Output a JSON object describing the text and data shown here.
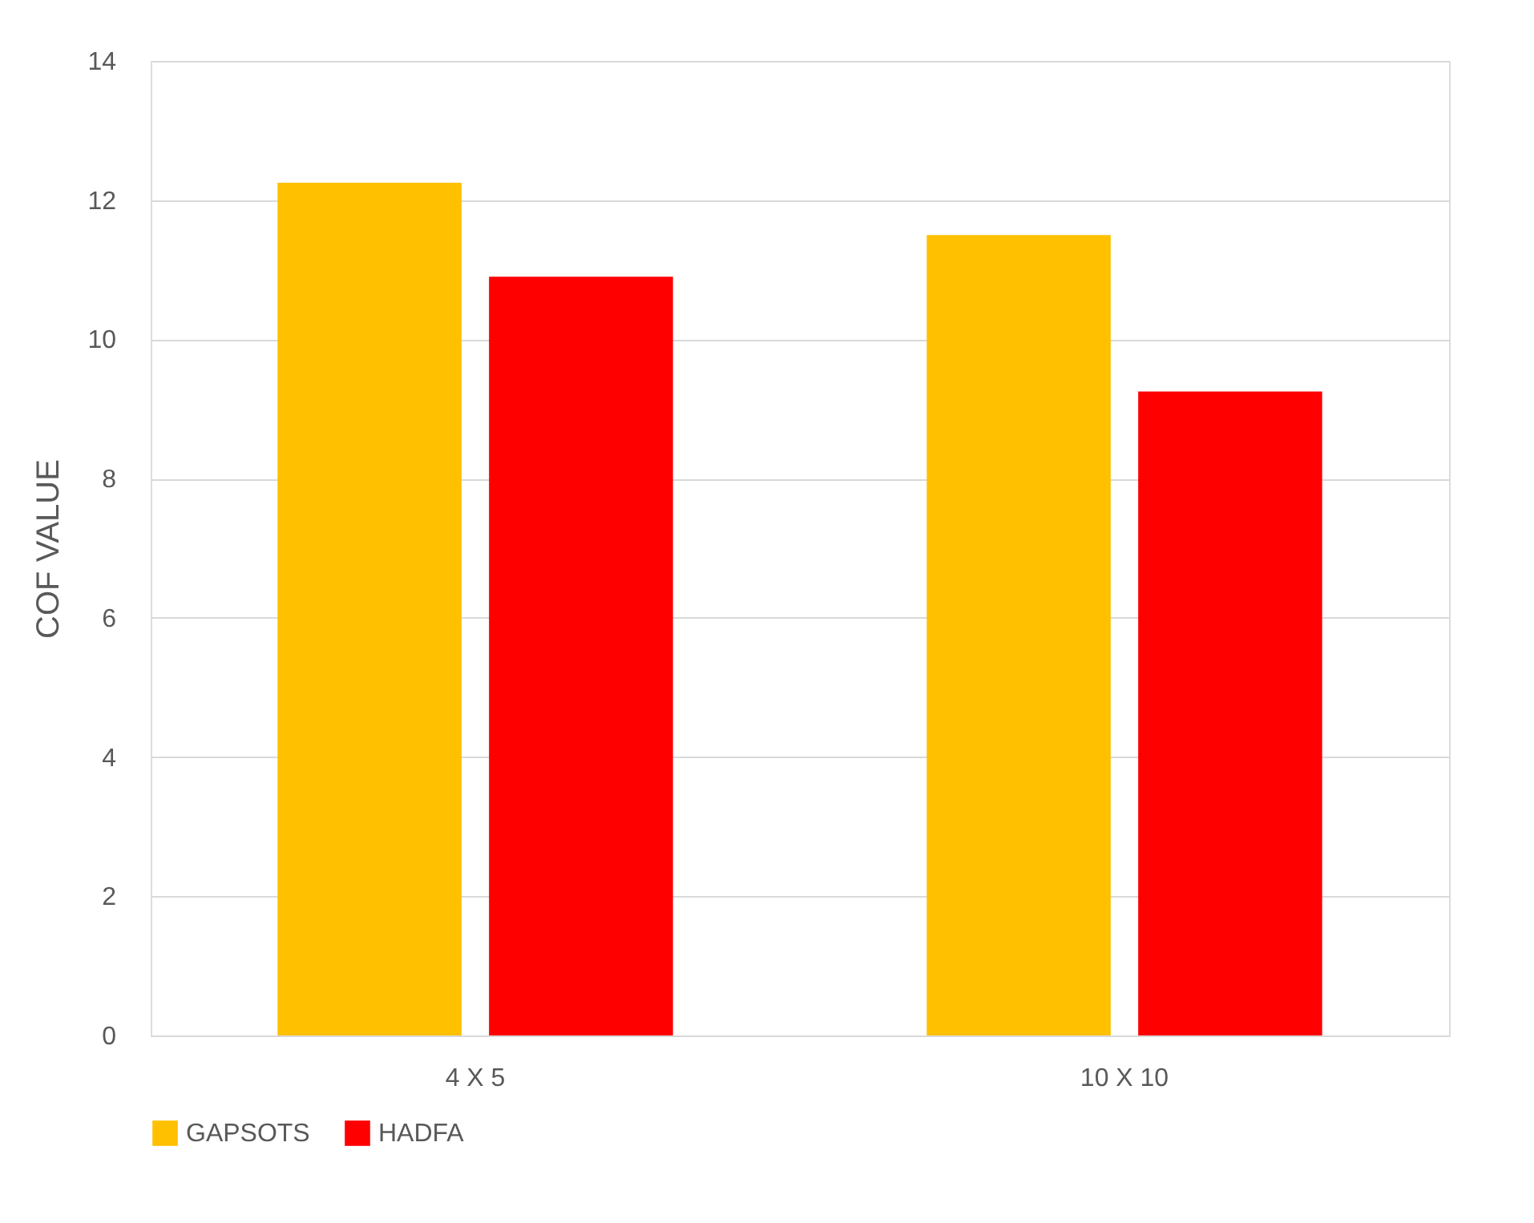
{
  "chart_data": {
    "type": "bar",
    "ylabel": "COF VALUE",
    "categories": [
      "4 X 5",
      "10 X 10"
    ],
    "series": [
      {
        "name": "GAPSOTS",
        "color": "#ffc000",
        "values": [
          12.25,
          11.5
        ]
      },
      {
        "name": "HADFA",
        "color": "#ff0000",
        "values": [
          10.9,
          9.25
        ]
      }
    ],
    "ylim": [
      0,
      14
    ],
    "yticks": [
      0,
      2,
      4,
      6,
      8,
      10,
      12,
      14
    ],
    "grid": "y",
    "legend": "bottom"
  }
}
